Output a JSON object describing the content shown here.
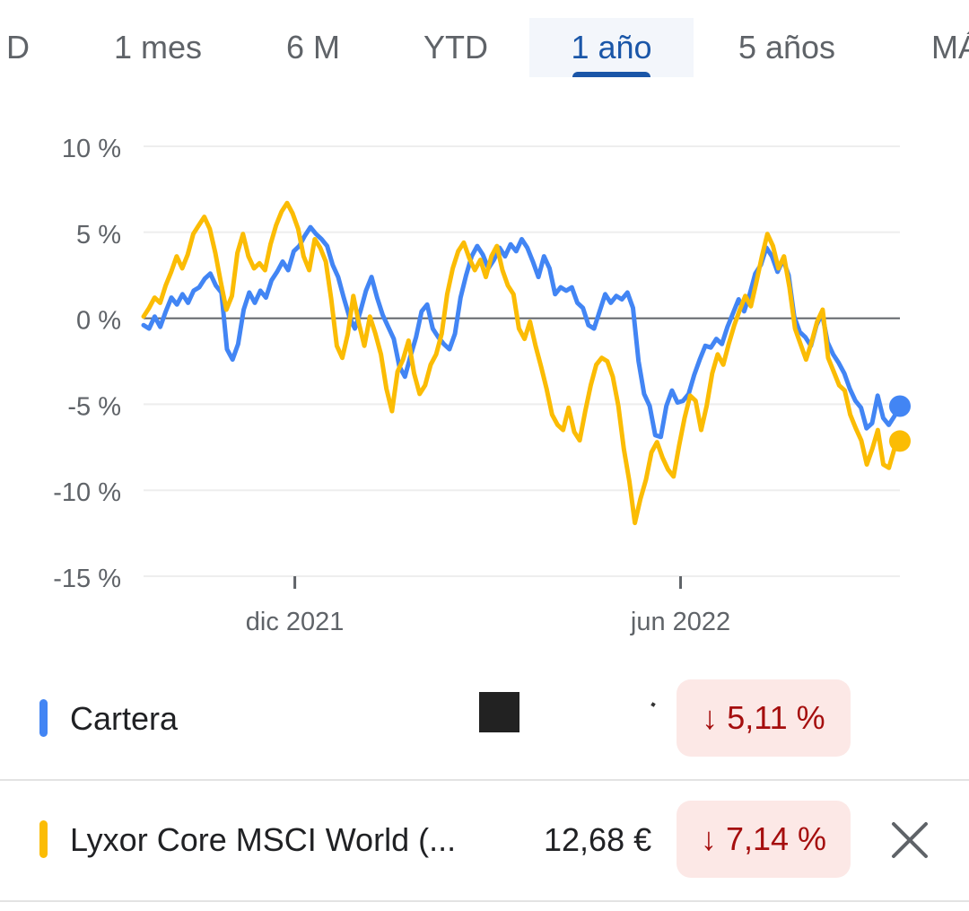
{
  "tabs": [
    {
      "label": "D",
      "active": false
    },
    {
      "label": "1 mes",
      "active": false
    },
    {
      "label": "6 M",
      "active": false
    },
    {
      "label": "YTD",
      "active": false
    },
    {
      "label": "1 año",
      "active": true
    },
    {
      "label": "5 años",
      "active": false
    },
    {
      "label": "MÁ",
      "active": false
    }
  ],
  "chart_data": {
    "type": "line",
    "title": "",
    "xlabel": "",
    "ylabel": "",
    "y_ticks": [
      "10 %",
      "5 %",
      "0 %",
      "-5 %",
      "-10 %",
      "-15 %"
    ],
    "y_tick_values": [
      10,
      5,
      0,
      -5,
      -10,
      -15
    ],
    "ylim": [
      -15,
      10
    ],
    "x_ticks": [
      "dic 2021",
      "jun 2022"
    ],
    "x_tick_positions": [
      0.2,
      0.71
    ],
    "grid": true,
    "zero_line": true,
    "series": [
      {
        "name": "Cartera",
        "color": "#4285f4",
        "values": [
          -0.4,
          -0.6,
          0.1,
          -0.5,
          0.4,
          1.2,
          0.8,
          1.4,
          0.9,
          1.6,
          1.8,
          2.3,
          2.6,
          1.9,
          1.5,
          -1.8,
          -2.4,
          -1.5,
          0.5,
          1.5,
          0.9,
          1.6,
          1.2,
          2.2,
          2.7,
          3.3,
          2.8,
          3.9,
          4.2,
          4.8,
          5.3,
          4.9,
          4.6,
          4.2,
          3.1,
          2.4,
          1.2,
          0.1,
          -0.6,
          0.4,
          1.6,
          2.4,
          1.2,
          0.2,
          -0.5,
          -1.2,
          -2.8,
          -3.4,
          -2.2,
          -1.1,
          0.4,
          0.8,
          -0.6,
          -1.1,
          -1.5,
          -1.8,
          -0.9,
          1.2,
          2.5,
          3.6,
          4.2,
          3.7,
          2.9,
          3.4,
          4.1,
          3.6,
          4.3,
          3.9,
          4.6,
          4.1,
          3.3,
          2.4,
          3.6,
          2.9,
          1.4,
          1.8,
          1.6,
          1.8,
          0.9,
          0.6,
          -0.4,
          -0.6,
          0.4,
          1.4,
          0.9,
          1.3,
          1.1,
          1.5,
          0.6,
          -2.5,
          -4.4,
          -5.1,
          -6.8,
          -6.9,
          -5.1,
          -4.2,
          -4.9,
          -4.8,
          -4.4,
          -3.3,
          -2.4,
          -1.6,
          -1.7,
          -1.2,
          -1.5,
          -0.5,
          0.3,
          1.1,
          0.4,
          1.4,
          2.6,
          3.1,
          4.1,
          3.6,
          2.7,
          3.4,
          2.5,
          0.1,
          -0.8,
          -1.1,
          -1.6,
          -0.4,
          0.3,
          -1.4,
          -2.1,
          -2.6,
          -3.2,
          -4.1,
          -4.8,
          -5.2,
          -6.4,
          -6.1,
          -4.5,
          -5.8,
          -6.2,
          -5.7,
          -5.11
        ]
      },
      {
        "name": "Lyxor Core MSCI World (...",
        "color": "#fbbc04",
        "values": [
          0.1,
          0.6,
          1.2,
          0.9,
          1.9,
          2.7,
          3.6,
          2.9,
          3.7,
          4.9,
          5.4,
          5.9,
          5.2,
          3.8,
          2.1,
          0.5,
          1.3,
          3.8,
          4.9,
          3.6,
          2.9,
          3.2,
          2.8,
          4.3,
          5.4,
          6.2,
          6.7,
          6.1,
          5.2,
          3.6,
          2.8,
          4.6,
          4.1,
          3.3,
          1.1,
          -1.6,
          -2.3,
          -0.9,
          1.3,
          -0.3,
          -1.6,
          0.1,
          -0.9,
          -2.1,
          -4.1,
          -5.4,
          -3.1,
          -2.4,
          -1.3,
          -3.2,
          -4.4,
          -3.9,
          -2.7,
          -2.1,
          -0.9,
          1.4,
          2.9,
          3.9,
          4.4,
          3.5,
          2.8,
          3.4,
          2.4,
          3.6,
          4.2,
          2.8,
          1.9,
          1.4,
          -0.6,
          -1.2,
          -0.2,
          -1.6,
          -2.8,
          -4.1,
          -5.6,
          -6.2,
          -6.5,
          -5.2,
          -6.6,
          -7.1,
          -5.4,
          -3.9,
          -2.7,
          -2.3,
          -2.5,
          -3.4,
          -5.1,
          -7.6,
          -9.5,
          -11.9,
          -10.5,
          -9.4,
          -7.8,
          -7.2,
          -8.1,
          -8.8,
          -9.2,
          -7.4,
          -5.8,
          -4.5,
          -4.8,
          -6.5,
          -5.1,
          -3.2,
          -2.1,
          -2.7,
          -1.5,
          -0.4,
          0.5,
          1.3,
          0.7,
          2.1,
          3.6,
          4.9,
          4.2,
          2.9,
          3.6,
          1.8,
          -0.6,
          -1.5,
          -2.4,
          -1.4,
          -0.2,
          0.5,
          -2.3,
          -3.1,
          -3.9,
          -4.2,
          -5.6,
          -6.4,
          -7.1,
          -8.5,
          -7.6,
          -6.5,
          -8.5,
          -8.7,
          -7.6,
          -7.14
        ]
      }
    ]
  },
  "legend_rows": [
    {
      "label": "Cartera",
      "price": "",
      "change": "↓ 5,11 %",
      "color": "#4285f4"
    },
    {
      "label": "Lyxor Core MSCI World (...",
      "price": "12,68 €",
      "change": "↓ 7,14 %",
      "color": "#fbbc04"
    }
  ],
  "icons": {
    "close": "close-icon"
  }
}
